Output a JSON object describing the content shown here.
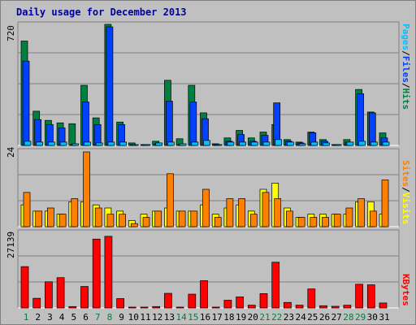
{
  "title": "Daily usage for December 2013",
  "axis_max": {
    "hits": "720",
    "visits": "24",
    "kbytes": "27139"
  },
  "legends": {
    "top": [
      {
        "text": "Pages",
        "color": "#00c0ff"
      },
      {
        "text": "/",
        "color": "#000000"
      },
      {
        "text": "Files",
        "color": "#0040ff"
      },
      {
        "text": "/",
        "color": "#000000"
      },
      {
        "text": "Hits",
        "color": "#008040"
      }
    ],
    "middle": [
      {
        "text": "Sites",
        "color": "#ff8000"
      },
      {
        "text": "/",
        "color": "#000000"
      },
      {
        "text": "Visits",
        "color": "#ffff00"
      }
    ],
    "bottom": [
      {
        "text": "KBytes",
        "color": "#ff0000"
      }
    ]
  },
  "colors": {
    "hits": "#008040",
    "files": "#0040ff",
    "pages": "#00c0ff",
    "visits": "#ffff00",
    "sites": "#ff8000",
    "kbytes": "#ff0000",
    "weekend_day": "#008040",
    "weekday": "#000000"
  },
  "chart_data": [
    {
      "type": "bar",
      "ylim": [
        0,
        720
      ],
      "categories": [
        "1",
        "2",
        "3",
        "4",
        "5",
        "6",
        "7",
        "8",
        "9",
        "10",
        "11",
        "12",
        "13",
        "14",
        "15",
        "16",
        "17",
        "18",
        "19",
        "20",
        "21",
        "22",
        "23",
        "24",
        "25",
        "26",
        "27",
        "28",
        "29",
        "30",
        "31"
      ],
      "weekend_days": [
        "1",
        "7",
        "8",
        "14",
        "15",
        "21",
        "22",
        "28",
        "29"
      ],
      "series": [
        {
          "name": "Hits",
          "values": [
            625,
            205,
            150,
            135,
            130,
            360,
            165,
            725,
            140,
            15,
            5,
            25,
            390,
            40,
            360,
            195,
            10,
            45,
            90,
            45,
            80,
            125,
            35,
            20,
            80,
            35,
            5,
            35,
            335,
            200,
            75
          ]
        },
        {
          "name": "Files",
          "values": [
            505,
            155,
            125,
            105,
            5,
            260,
            125,
            710,
            125,
            5,
            5,
            10,
            265,
            5,
            260,
            160,
            5,
            25,
            65,
            25,
            60,
            255,
            25,
            15,
            75,
            25,
            5,
            20,
            310,
            195,
            45
          ]
        },
        {
          "name": "Pages",
          "values": [
            25,
            20,
            20,
            20,
            10,
            20,
            15,
            20,
            20,
            5,
            5,
            15,
            20,
            10,
            20,
            30,
            5,
            20,
            20,
            20,
            20,
            35,
            20,
            10,
            20,
            15,
            5,
            20,
            25,
            20,
            20
          ]
        }
      ]
    },
    {
      "type": "bar",
      "ylim": [
        0,
        24
      ],
      "categories": [
        "1",
        "2",
        "3",
        "4",
        "5",
        "6",
        "7",
        "8",
        "9",
        "10",
        "11",
        "12",
        "13",
        "14",
        "15",
        "16",
        "17",
        "18",
        "19",
        "20",
        "21",
        "22",
        "23",
        "24",
        "25",
        "26",
        "27",
        "28",
        "29",
        "30",
        "31"
      ],
      "series": [
        {
          "name": "Visits",
          "values": [
            7,
            5,
            5,
            4,
            8,
            8,
            7,
            6,
            5,
            2,
            4,
            5,
            6,
            5,
            5,
            7,
            4,
            6,
            7,
            5,
            12,
            14,
            6,
            3,
            4,
            4,
            4,
            4,
            8,
            8,
            4
          ]
        },
        {
          "name": "Sites",
          "values": [
            11,
            5,
            6,
            4,
            9,
            24,
            6,
            4,
            4,
            1,
            3,
            5,
            17,
            5,
            5,
            12,
            3,
            9,
            9,
            4,
            11,
            9,
            5,
            3,
            3,
            3,
            4,
            6,
            9,
            5,
            15
          ]
        }
      ]
    },
    {
      "type": "bar",
      "ylim": [
        0,
        27139
      ],
      "categories": [
        "1",
        "2",
        "3",
        "4",
        "5",
        "6",
        "7",
        "8",
        "9",
        "10",
        "11",
        "12",
        "13",
        "14",
        "15",
        "16",
        "17",
        "18",
        "19",
        "20",
        "21",
        "22",
        "23",
        "24",
        "25",
        "26",
        "27",
        "28",
        "29",
        "30",
        "31"
      ],
      "series": [
        {
          "name": "KBytes",
          "values": [
            15000,
            3500,
            9500,
            11000,
            500,
            7800,
            25000,
            26000,
            3400,
            300,
            300,
            500,
            5300,
            300,
            5000,
            9900,
            300,
            2800,
            4000,
            1000,
            5200,
            16600,
            2000,
            1000,
            6900,
            800,
            600,
            1000,
            8600,
            8400,
            1800
          ]
        }
      ]
    }
  ]
}
